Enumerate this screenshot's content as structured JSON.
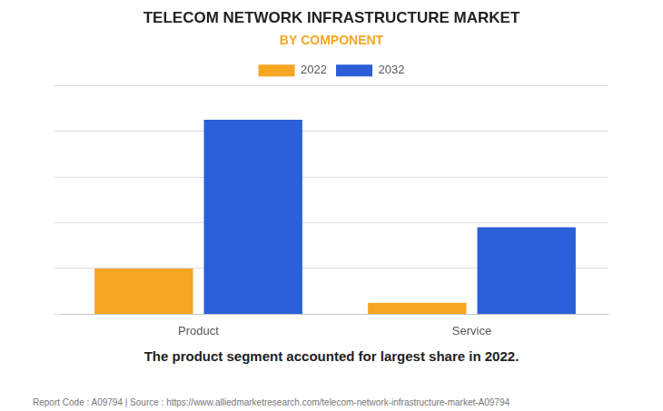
{
  "chart_data": {
    "type": "bar",
    "title": "TELECOM NETWORK INFRASTRUCTURE MARKET",
    "subtitle": "BY COMPONENT",
    "categories": [
      "Product",
      "Service"
    ],
    "series": [
      {
        "name": "2022",
        "color": "#F5A623",
        "values": [
          20,
          5
        ]
      },
      {
        "name": "2032",
        "color": "#2B5FD9",
        "values": [
          85,
          38
        ]
      }
    ],
    "ylim": [
      0,
      100
    ],
    "yticks": [
      0,
      20,
      40,
      60,
      80,
      100
    ],
    "grid": true,
    "tick_labels": "x",
    "legend": "top",
    "annotation": "The product segment accounted for largest share in 2022.",
    "footer": "Report Code : A09794  |  Source : https://www.alliedmarketresearch.com/telecom-network-infrastructure-market-A09794"
  }
}
